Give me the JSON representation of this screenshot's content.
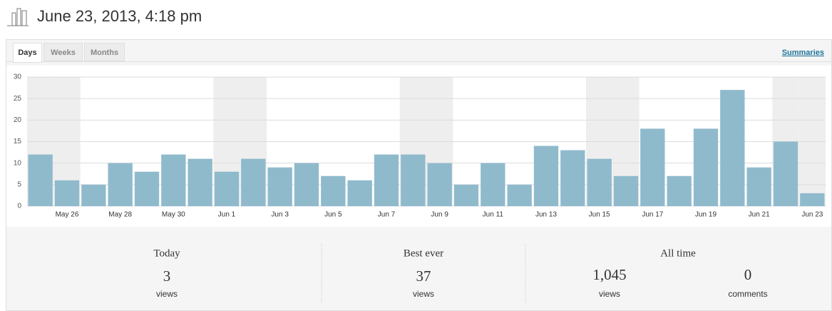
{
  "header": {
    "title": "June 23, 2013, 4:18 pm"
  },
  "tabs": [
    "Days",
    "Weeks",
    "Months"
  ],
  "link": "Summaries",
  "chart_data": {
    "type": "bar",
    "categories": [
      null,
      "May 26",
      null,
      "May 28",
      null,
      "May 30",
      null,
      "Jun 1",
      null,
      "Jun 3",
      null,
      "Jun 5",
      null,
      "Jun 7",
      null,
      "Jun 9",
      null,
      "Jun 11",
      null,
      "Jun 13",
      null,
      "Jun 15",
      null,
      "Jun 17",
      null,
      "Jun 19",
      null,
      "Jun 21",
      null,
      "Jun 23"
    ],
    "values": [
      12,
      6,
      5,
      10,
      8,
      12,
      11,
      8,
      11,
      9,
      10,
      7,
      6,
      12,
      12,
      10,
      5,
      10,
      5,
      14,
      13,
      11,
      7,
      18,
      7,
      18,
      27,
      9,
      15,
      3
    ],
    "color": "#8fbacc",
    "ylim": [
      0,
      30
    ],
    "yticks": [
      0,
      5,
      10,
      15,
      20,
      25,
      30
    ],
    "grid": true
  },
  "summary": [
    {
      "label": "Today",
      "items": [
        {
          "count": "3",
          "unit": "views"
        }
      ]
    },
    {
      "label": "Best ever",
      "items": [
        {
          "count": "37",
          "unit": "views"
        }
      ]
    },
    {
      "label": "All time",
      "items": [
        {
          "count": "1,045",
          "unit": "views"
        },
        {
          "count": "0",
          "unit": "comments"
        }
      ]
    }
  ]
}
